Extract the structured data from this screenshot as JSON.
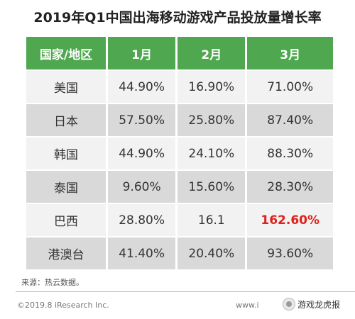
{
  "title": "2019年Q1中国出海移动游戏产品投放量增长率",
  "table": {
    "headers": [
      "国家/地区",
      "1月",
      "2月",
      "3月"
    ],
    "rows": [
      [
        "美国",
        "44.90%",
        "16.90%",
        "71.00%"
      ],
      [
        "日本",
        "57.50%",
        "25.80%",
        "87.40%"
      ],
      [
        "韩国",
        "44.90%",
        "24.10%",
        "88.30%"
      ],
      [
        "泰国",
        "9.60%",
        "15.60%",
        "28.30%"
      ],
      [
        "巴西",
        "28.80%",
        "16.1",
        "162.60%"
      ],
      [
        "港澳台",
        "41.40%",
        "20.40%",
        "93.60%"
      ]
    ],
    "highlight_color": "#e0201b",
    "header_color": "#4fa84f"
  },
  "source": "来源：热云数据。",
  "copyright": "©2019.8 iResearch Inc.",
  "site": "www.i",
  "watermark": "游戏龙虎报"
}
